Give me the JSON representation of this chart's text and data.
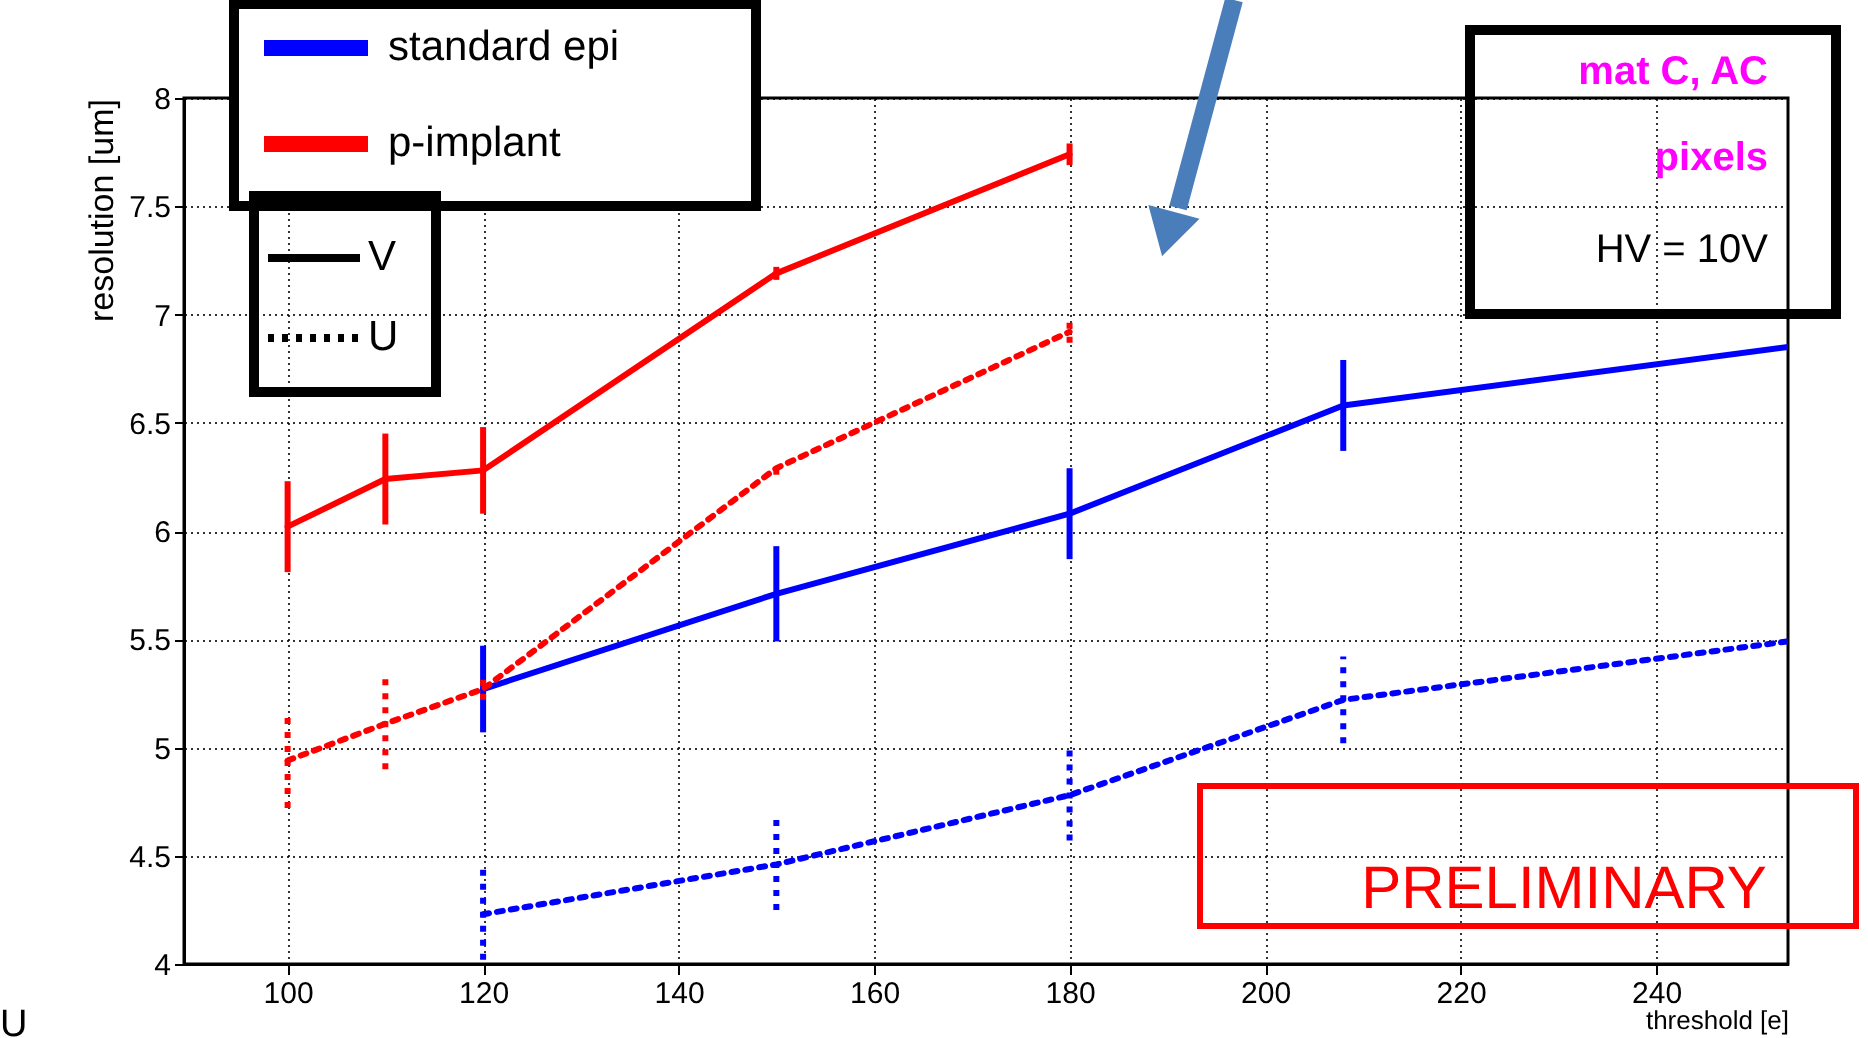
{
  "chart_data": {
    "type": "line",
    "xlabel": "threshold [e]",
    "ylabel": "resolution [um]",
    "xlim": [
      89.4,
      253.5
    ],
    "xticks": [
      100,
      120,
      140,
      160,
      180,
      200,
      220,
      240
    ],
    "ylim": [
      4,
      8
    ],
    "yticks": [
      4,
      4.5,
      5,
      5.5,
      6,
      6.5,
      7,
      7.5,
      8
    ],
    "grid": true,
    "legend": "top left",
    "marker": "none",
    "series": [
      {
        "name": "standard epi",
        "color": "#0000ff",
        "line_style": "solid",
        "x": [
          120,
          150,
          180,
          208,
          253.5
        ],
        "values": [
          5.27,
          5.71,
          6.08,
          6.58,
          6.85
        ],
        "errors": [
          0.2,
          0.22,
          0.21,
          0.21,
          null
        ]
      },
      {
        "name": "p-implant",
        "color": "#ff0000",
        "line_style": "solid",
        "x": [
          100,
          110,
          120,
          150,
          180
        ],
        "values": [
          6.02,
          6.24,
          6.28,
          7.19,
          7.74
        ],
        "errors": [
          0.21,
          0.21,
          0.2,
          0.03,
          0.05
        ]
      },
      {
        "color": "#0000ff",
        "line_style": "dotted",
        "x": [
          120,
          150,
          180,
          208,
          253.5
        ],
        "values": [
          4.23,
          4.46,
          4.78,
          5.22,
          5.49
        ],
        "errors": [
          0.21,
          0.21,
          0.21,
          0.2,
          null
        ]
      },
      {
        "color": "#ff0000",
        "line_style": "dotted",
        "x": [
          100,
          110,
          120,
          150,
          180
        ],
        "values": [
          4.94,
          5.11,
          5.27,
          6.29,
          6.92
        ],
        "errors": [
          0.22,
          0.21,
          0.05,
          0.03,
          0.05
        ]
      }
    ],
    "annotations": [
      "V",
      "U",
      "mat C, AC",
      "pixels",
      "HV = 10V",
      "PRELIMINARY",
      "U"
    ]
  }
}
